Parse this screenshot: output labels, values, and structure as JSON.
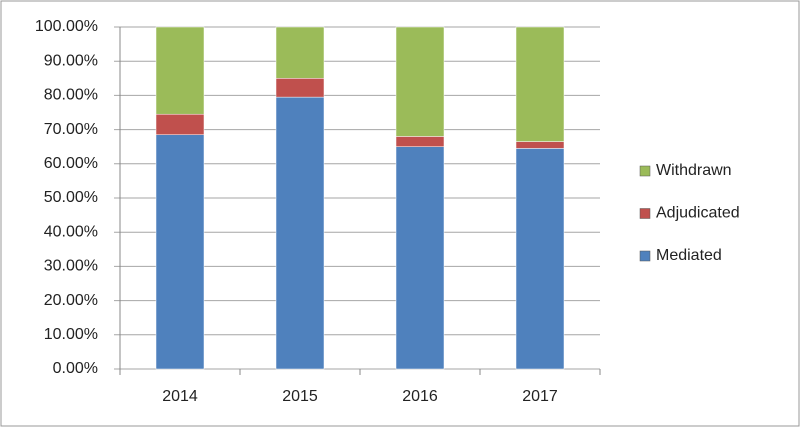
{
  "chart_data": {
    "type": "stacked_bar",
    "categories": [
      "2014",
      "2015",
      "2016",
      "2017"
    ],
    "series": [
      {
        "name": "Mediated",
        "color": "#4f81bd",
        "values": [
          68.5,
          79.5,
          65,
          64.5
        ]
      },
      {
        "name": "Adjudicated",
        "color": "#c0504d",
        "values": [
          6,
          5.5,
          3,
          2
        ]
      },
      {
        "name": "Withdrawn",
        "color": "#9bbb59",
        "values": [
          25.5,
          15,
          32,
          33.5
        ]
      }
    ],
    "ylim": [
      0,
      100
    ],
    "yticks": [
      {
        "value": 0,
        "label": "0.00%"
      },
      {
        "value": 10,
        "label": "10.00%"
      },
      {
        "value": 20,
        "label": "20.00%"
      },
      {
        "value": 30,
        "label": "30.00%"
      },
      {
        "value": 40,
        "label": "40.00%"
      },
      {
        "value": 50,
        "label": "50.00%"
      },
      {
        "value": 60,
        "label": "60.00%"
      },
      {
        "value": 70,
        "label": "70.00%"
      },
      {
        "value": 80,
        "label": "80.00%"
      },
      {
        "value": 90,
        "label": "90.00%"
      },
      {
        "value": 100,
        "label": "100.00%"
      }
    ],
    "grid": true,
    "legend": "right"
  }
}
